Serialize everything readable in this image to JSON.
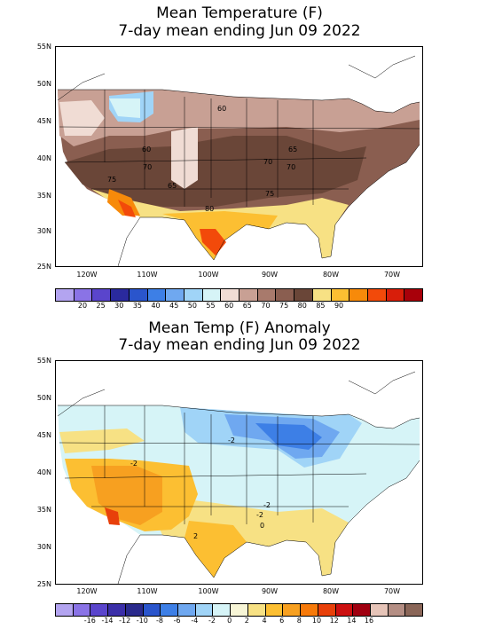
{
  "temp_panel": {
    "title_line1": "Mean Temperature (F)",
    "title_line2": "7-day mean ending Jun 09 2022",
    "lat_labels": [
      "55N",
      "50N",
      "45N",
      "40N",
      "35N",
      "30N",
      "25N"
    ],
    "lon_labels": [
      "120W",
      "110W",
      "100W",
      "90W",
      "80W",
      "70W"
    ],
    "contour_labels": [
      "60",
      "60",
      "65",
      "70",
      "70",
      "70",
      "75",
      "75",
      "65",
      "80"
    ],
    "colorbar": {
      "colors": [
        "#b3a4f0",
        "#8a73e6",
        "#5a45cc",
        "#2a2a9e",
        "#2a55cc",
        "#3d7fe6",
        "#6fa8f0",
        "#a0d4f7",
        "#d6f4f7",
        "#f0dcd4",
        "#c8a094",
        "#a87a6c",
        "#8a5e50",
        "#6a4638",
        "#f7e184",
        "#fcbf32",
        "#f78a0a",
        "#f24a0a",
        "#d81e0a",
        "#a8000a"
      ],
      "labels": [
        "20",
        "25",
        "30",
        "35",
        "40",
        "45",
        "50",
        "55",
        "60",
        "65",
        "70",
        "75",
        "80",
        "85",
        "90"
      ]
    }
  },
  "anom_panel": {
    "title_line1": "Mean Temp (F) Anomaly",
    "title_line2": "7-day mean ending Jun 09 2022",
    "lat_labels": [
      "55N",
      "50N",
      "45N",
      "40N",
      "35N",
      "30N",
      "25N"
    ],
    "lon_labels": [
      "120W",
      "110W",
      "100W",
      "90W",
      "80W",
      "70W"
    ],
    "contour_labels": [
      "-2",
      "-2",
      "-2",
      "-2",
      "0",
      "2"
    ],
    "colorbar": {
      "colors": [
        "#b3a4f0",
        "#8a73e6",
        "#5a45cc",
        "#3b2fa8",
        "#2a2a8c",
        "#2a55cc",
        "#3d7fe6",
        "#6fa8f0",
        "#a0d4f7",
        "#d6f4f7",
        "#f7f5d6",
        "#f7e184",
        "#fcbf32",
        "#f7a020",
        "#f77a0a",
        "#e8400a",
        "#cc1010",
        "#a00010",
        "#e6c4b8",
        "#b48e84",
        "#8a6658"
      ],
      "labels": [
        "-16",
        "-14",
        "-12",
        "-10",
        "-8",
        "-6",
        "-4",
        "-2",
        "0",
        "2",
        "4",
        "6",
        "8",
        "10",
        "12",
        "14",
        "16"
      ]
    }
  }
}
